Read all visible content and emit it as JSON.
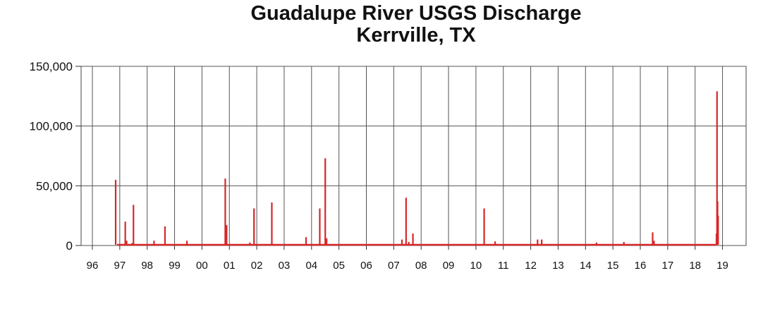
{
  "chart_data": {
    "type": "line",
    "title": "Guadalupe River USGS Discharge",
    "subtitle": "Kerrville, TX",
    "xlabel": "",
    "ylabel": "",
    "x_ticks": [
      "96",
      "97",
      "98",
      "99",
      "00",
      "01",
      "02",
      "03",
      "04",
      "05",
      "06",
      "07",
      "08",
      "09",
      "10",
      "11",
      "12",
      "13",
      "14",
      "15",
      "16",
      "17",
      "18",
      "19"
    ],
    "y_ticks": [
      "0",
      "50,000",
      "100,000",
      "150,000"
    ],
    "xlim": [
      1996.0,
      2019.7
    ],
    "ylim": [
      0,
      155000
    ],
    "grid": true,
    "line_color": "#d62728",
    "x_start": 1996.9,
    "x_end": 2018.8,
    "peaks": [
      {
        "x": 1996.85,
        "y": 55000
      },
      {
        "x": 1997.2,
        "y": 20000
      },
      {
        "x": 1997.25,
        "y": 4000
      },
      {
        "x": 1997.45,
        "y": 2000
      },
      {
        "x": 1997.5,
        "y": 34000
      },
      {
        "x": 1998.25,
        "y": 4000
      },
      {
        "x": 1998.65,
        "y": 16000
      },
      {
        "x": 1999.45,
        "y": 4000
      },
      {
        "x": 2000.85,
        "y": 56000
      },
      {
        "x": 2000.9,
        "y": 17000
      },
      {
        "x": 2001.75,
        "y": 2500
      },
      {
        "x": 2001.9,
        "y": 31000
      },
      {
        "x": 2002.55,
        "y": 36000
      },
      {
        "x": 2003.8,
        "y": 7000
      },
      {
        "x": 2004.3,
        "y": 31000
      },
      {
        "x": 2004.5,
        "y": 73000
      },
      {
        "x": 2004.55,
        "y": 6000
      },
      {
        "x": 2007.3,
        "y": 5000
      },
      {
        "x": 2007.45,
        "y": 40000
      },
      {
        "x": 2007.55,
        "y": 3000
      },
      {
        "x": 2007.7,
        "y": 10000
      },
      {
        "x": 2010.3,
        "y": 31000
      },
      {
        "x": 2010.7,
        "y": 3500
      },
      {
        "x": 2012.25,
        "y": 5000
      },
      {
        "x": 2012.4,
        "y": 5000
      },
      {
        "x": 2014.4,
        "y": 2500
      },
      {
        "x": 2015.4,
        "y": 3000
      },
      {
        "x": 2016.45,
        "y": 11000
      },
      {
        "x": 2016.5,
        "y": 4000
      },
      {
        "x": 2018.78,
        "y": 10000
      },
      {
        "x": 2018.8,
        "y": 129000
      },
      {
        "x": 2018.82,
        "y": 37000
      },
      {
        "x": 2018.84,
        "y": 25000
      }
    ]
  }
}
